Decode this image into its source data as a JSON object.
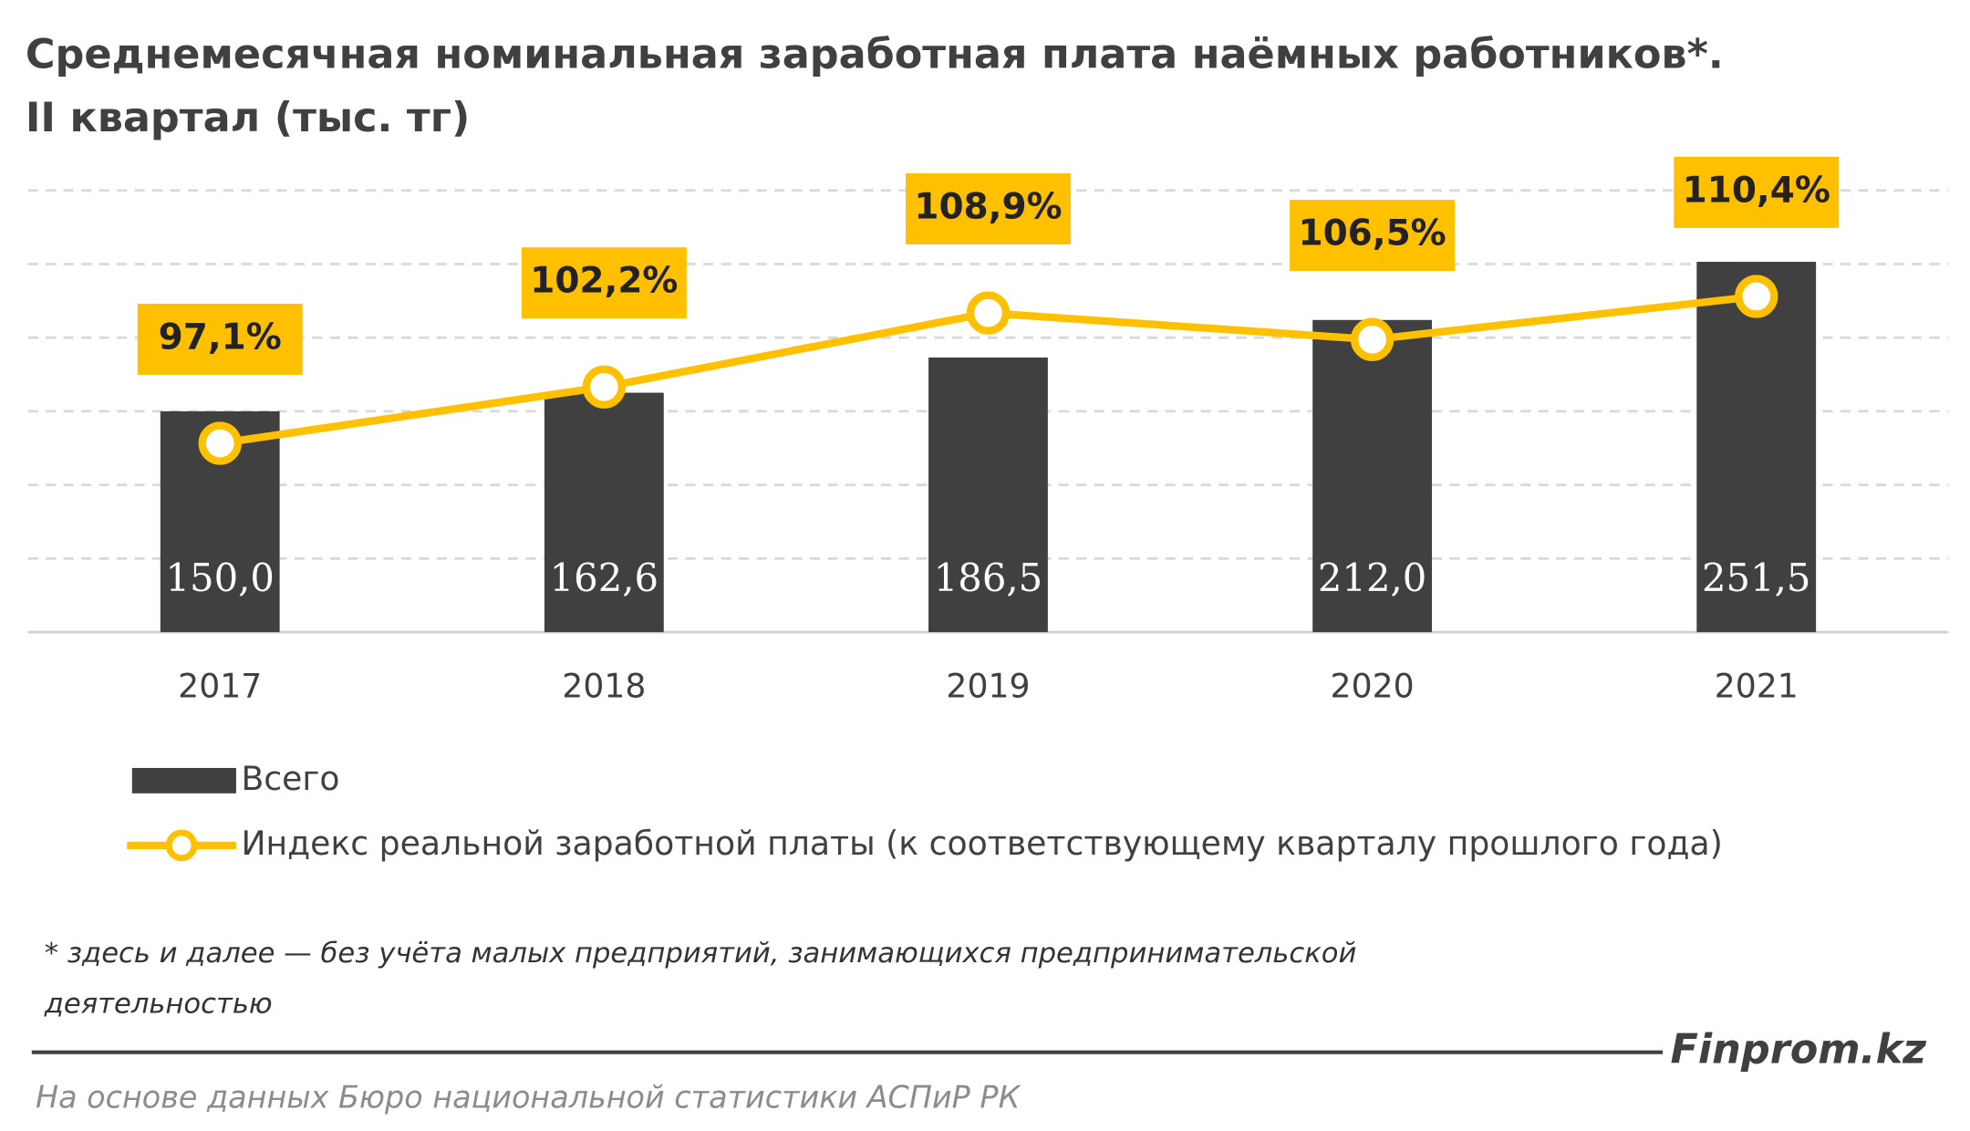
{
  "chart_data": {
    "type": "bar-line",
    "title": "Среднемесячная номинальная заработная плата наёмных работников*.",
    "subtitle": "II квартал (тыс. тг)",
    "categories": [
      "2017",
      "2018",
      "2019",
      "2020",
      "2021"
    ],
    "series": [
      {
        "name": "Всего",
        "type": "bar",
        "color": "#404040",
        "values": [
          150.0,
          162.6,
          186.5,
          212.0,
          251.5
        ],
        "value_labels": [
          "150,0",
          "162,6",
          "186,5",
          "212,0",
          "251,5"
        ]
      },
      {
        "name": "Индекс реальной заработной платы (к соответствующему кварталу прошлого года)",
        "type": "line",
        "axis": "y2",
        "color": "#ffc000",
        "values": [
          97.1,
          102.2,
          108.9,
          106.5,
          110.4
        ],
        "value_labels": [
          "97,1%",
          "102,2%",
          "108,9%",
          "106,5%",
          "110,4%"
        ]
      }
    ],
    "ylim": [
      0,
      300
    ],
    "yticks": [
      0,
      50,
      100,
      150,
      200,
      250,
      300
    ],
    "y2lim": [
      80,
      120
    ],
    "grid": true,
    "footnote": [
      "* здесь и далее — без учёта малых предприятий, занимающихся предпринимательской",
      "деятельностью"
    ],
    "brand": "Finprom.kz",
    "source": "На основе данных Бюро национальной статистики АСПиР РК"
  }
}
